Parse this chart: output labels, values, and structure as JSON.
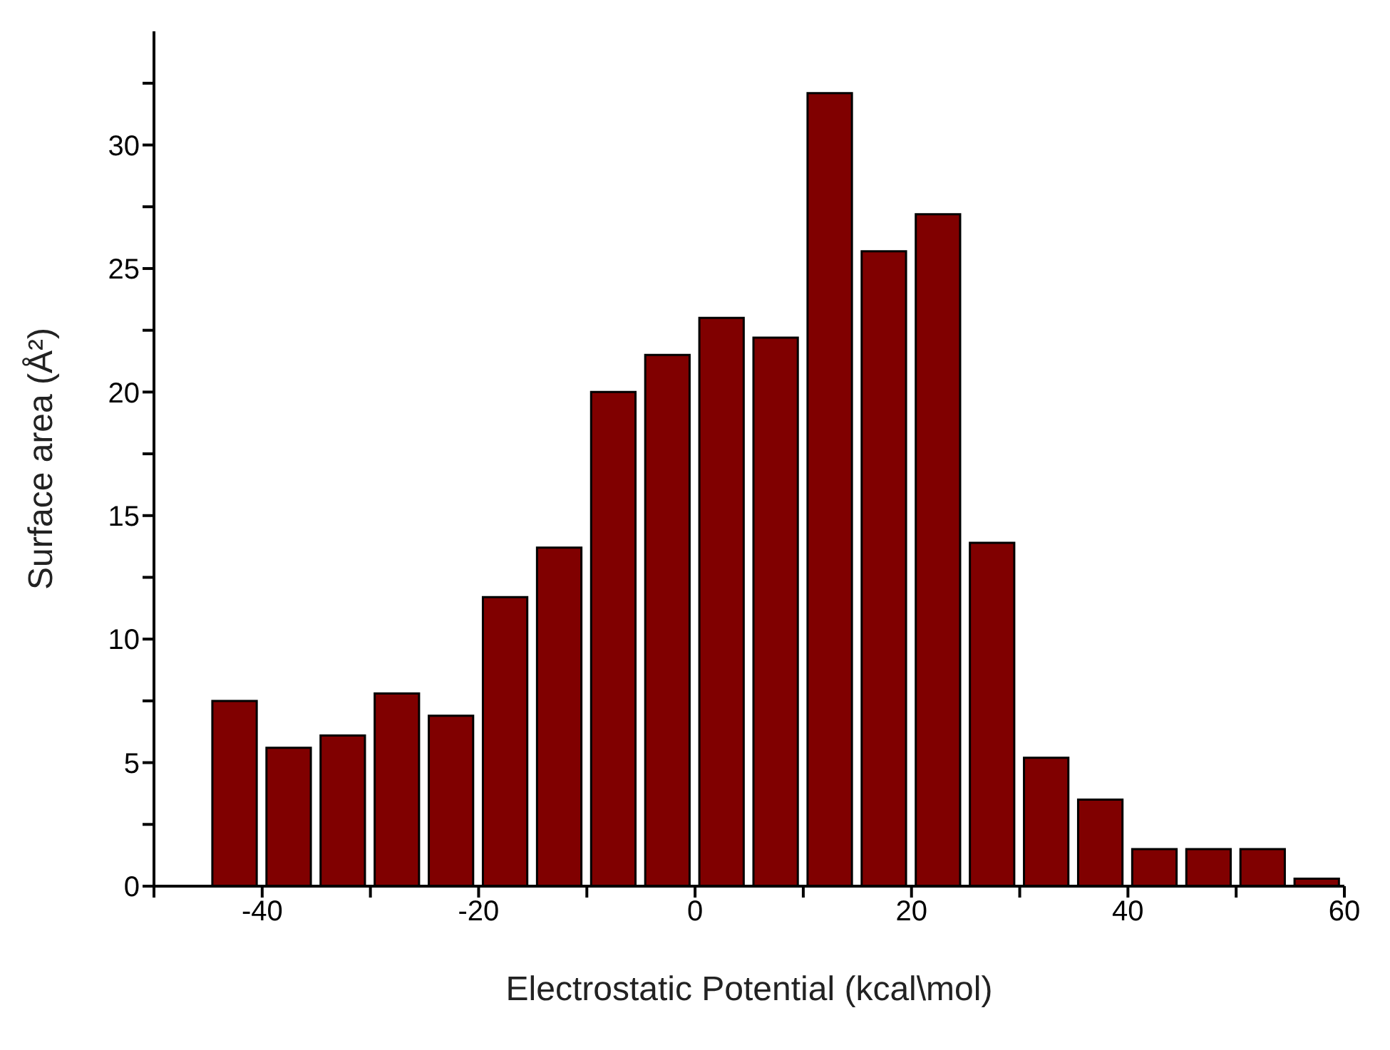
{
  "chart_data": {
    "type": "histogram",
    "xlabel": "Electrostatic Potential (kcal\\mol)",
    "ylabel": "Surface area (Å²)",
    "bins": [
      -45,
      -40,
      -35,
      -30,
      -25,
      -20,
      -15,
      -10,
      -5,
      0,
      5,
      10,
      15,
      20,
      25,
      30,
      35,
      40,
      45,
      50,
      55,
      60
    ],
    "values": [
      7.5,
      5.6,
      6.1,
      7.8,
      6.9,
      11.7,
      13.7,
      20.0,
      21.5,
      23.0,
      22.2,
      32.1,
      25.7,
      27.2,
      13.9,
      5.2,
      3.5,
      1.5,
      1.5,
      1.5,
      0.3
    ],
    "color": "#800000",
    "xlim": [
      -50,
      60
    ],
    "xticks": [
      {
        "value": -50,
        "label": null
      },
      -40,
      {
        "value": -30,
        "label": null
      },
      -20,
      {
        "value": -10,
        "label": null
      },
      0,
      {
        "value": 10,
        "label": null
      },
      20,
      {
        "value": 30,
        "label": null
      },
      40,
      {
        "value": 50,
        "label": null
      },
      60
    ],
    "ylim": [
      0,
      34.6
    ],
    "yticks": [
      0,
      {
        "value": 2.5,
        "label": null
      },
      5,
      {
        "value": 7.5,
        "label": null
      },
      10,
      {
        "value": 12.5,
        "label": null
      },
      15,
      {
        "value": 17.5,
        "label": null
      },
      20,
      {
        "value": 22.5,
        "label": null
      },
      25,
      {
        "value": 27.5,
        "label": null
      },
      30,
      {
        "value": 32.5,
        "label": null
      }
    ],
    "grid": false,
    "legend": false
  }
}
